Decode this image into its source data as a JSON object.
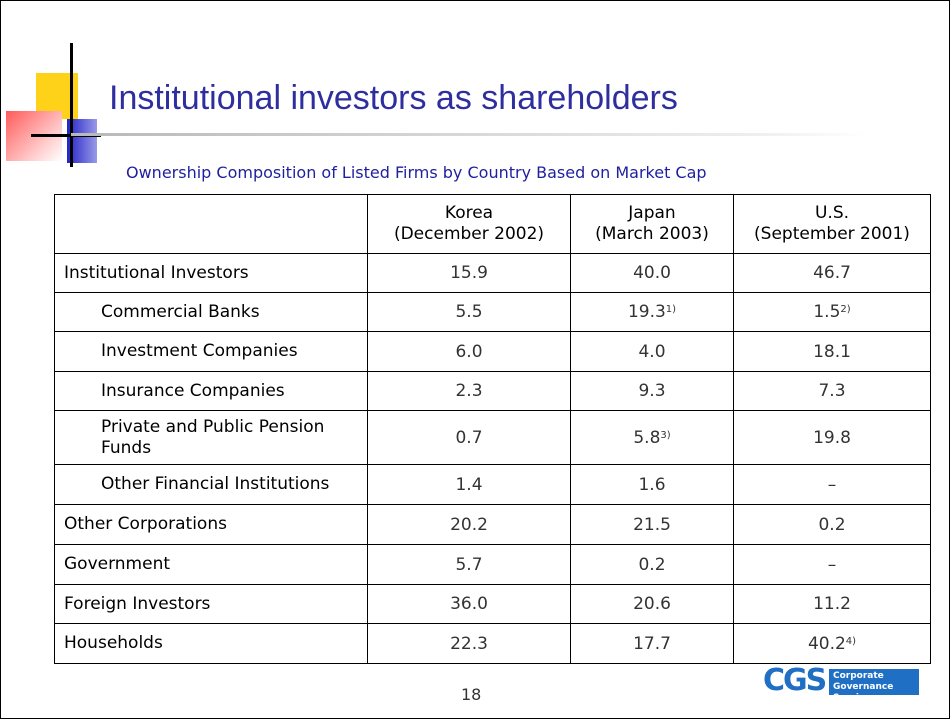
{
  "header": {
    "title": "Institutional investors as shareholders",
    "subtitle": "Ownership Composition of Listed Firms by Country Based on Market Cap"
  },
  "table": {
    "columns": [
      [
        "Korea",
        "(December 2002)"
      ],
      [
        "Japan",
        "(March 2003)"
      ],
      [
        "U.S.",
        "(September 2001)"
      ]
    ],
    "rows": [
      {
        "label": "Institutional Investors",
        "indent": false,
        "cells": [
          {
            "text": "15.9"
          },
          {
            "text": "40.0"
          },
          {
            "text": "46.7"
          }
        ]
      },
      {
        "label": "Commercial Banks",
        "indent": true,
        "cells": [
          {
            "text": "5.5"
          },
          {
            "text": "19.3",
            "sup": "1)"
          },
          {
            "text": "1.5",
            "sup": "2)"
          }
        ]
      },
      {
        "label": "Investment Companies",
        "indent": true,
        "cells": [
          {
            "text": "6.0"
          },
          {
            "text": "4.0"
          },
          {
            "text": "18.1"
          }
        ]
      },
      {
        "label": "Insurance Companies",
        "indent": true,
        "cells": [
          {
            "text": "2.3"
          },
          {
            "text": "9.3"
          },
          {
            "text": "7.3"
          }
        ]
      },
      {
        "label": "Private and Public Pension Funds",
        "indent": true,
        "cells": [
          {
            "text": "0.7"
          },
          {
            "text": "5.8",
            "sup": "3)"
          },
          {
            "text": "19.8"
          }
        ]
      },
      {
        "label": "Other Financial Institutions",
        "indent": true,
        "cells": [
          {
            "text": "1.4"
          },
          {
            "text": "1.6"
          },
          {
            "text": "–"
          }
        ]
      },
      {
        "label": "Other Corporations",
        "indent": false,
        "cells": [
          {
            "text": "20.2"
          },
          {
            "text": "21.5"
          },
          {
            "text": "0.2"
          }
        ]
      },
      {
        "label": "Government",
        "indent": false,
        "cells": [
          {
            "text": "5.7"
          },
          {
            "text": "0.2"
          },
          {
            "text": "–"
          }
        ]
      },
      {
        "label": "Foreign Investors",
        "indent": false,
        "cells": [
          {
            "text": "36.0"
          },
          {
            "text": "20.6"
          },
          {
            "text": "11.2"
          }
        ]
      },
      {
        "label": "Households",
        "indent": false,
        "cells": [
          {
            "text": "22.3"
          },
          {
            "text": "17.7"
          },
          {
            "text": "40.2",
            "sup": "4)"
          }
        ]
      }
    ]
  },
  "footer": {
    "page": "18",
    "logo": "CGS",
    "logo_lines": [
      "Corporate",
      "Governance Service"
    ]
  }
}
